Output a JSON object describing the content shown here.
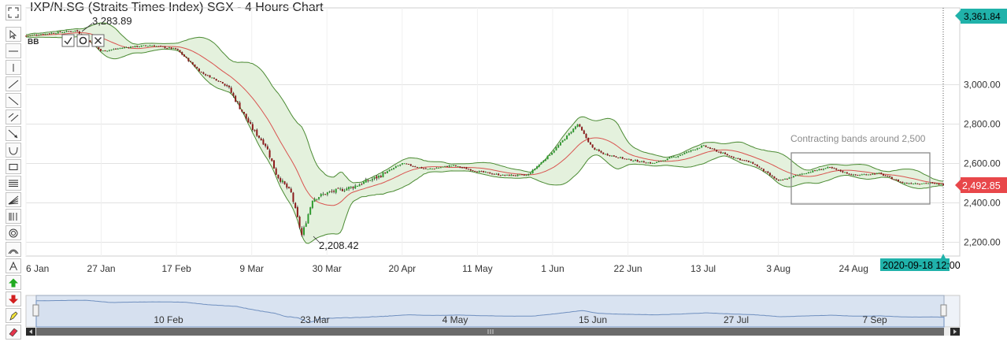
{
  "header": {
    "title": "IXP/N.SG (Straits Times Index) SGX - 4 Hours Chart"
  },
  "toolbar": {
    "tools": [
      "fullscreen-icon",
      "cursor-icon",
      "horizontal-line-icon",
      "vertical-line-icon",
      "trend-line-icon",
      "ray-icon",
      "parallel-channel-icon",
      "arrow-line-icon",
      "arc-icon",
      "rectangle-icon",
      "fibonacci-retracement-icon",
      "fibonacci-fan-icon",
      "fibonacci-time-icon",
      "circle-icon",
      "fibonacci-arc-icon",
      "text-icon",
      "buy-arrow-icon",
      "sell-arrow-icon",
      "pencil-icon",
      "eraser-icon"
    ]
  },
  "widgets": {
    "bb_label": "BB",
    "widget_icons": [
      "check-icon",
      "gear-icon",
      "close-icon"
    ]
  },
  "chart_data": {
    "type": "candlestick",
    "title": "IXP/N.SG (Straits Times Index) SGX - 4 Hours Chart",
    "indicator": "Bollinger Bands",
    "y_ticks": [
      "3,000.00",
      "2,800.00",
      "2,600.00",
      "2,400.00",
      "2,200.00"
    ],
    "y_tick_values": [
      3000,
      2800,
      2600,
      2400,
      2200
    ],
    "ylim": [
      2130,
      3390
    ],
    "x_ticks": [
      "6 Jan",
      "27 Jan",
      "17 Feb",
      "9 Mar",
      "30 Mar",
      "20 Apr",
      "11 May",
      "1 Jun",
      "22 Jun",
      "13 Jul",
      "3 Aug",
      "24 Aug"
    ],
    "x_range": [
      "2020-01-06",
      "2020-09-18"
    ],
    "current_price_label": "2,492.85",
    "current_price": 2492.85,
    "crosshair_price_label": "3,361.84",
    "crosshair_price": 3361.84,
    "crosshair_time_label": "2020-09-18 12:00",
    "high_label": "3,283.89",
    "high_value": 3283.89,
    "low_label": "2,208.42",
    "low_value": 2208.42,
    "annotation": "Contracting bands around 2,500",
    "close_series": [
      {
        "date": "2020-01-06",
        "value": 3248
      },
      {
        "date": "2020-01-13",
        "value": 3262
      },
      {
        "date": "2020-01-20",
        "value": 3275
      },
      {
        "date": "2020-01-27",
        "value": 3170
      },
      {
        "date": "2020-02-03",
        "value": 3190
      },
      {
        "date": "2020-02-10",
        "value": 3200
      },
      {
        "date": "2020-02-17",
        "value": 3180
      },
      {
        "date": "2020-02-24",
        "value": 3060
      },
      {
        "date": "2020-03-02",
        "value": 3000
      },
      {
        "date": "2020-03-09",
        "value": 2780
      },
      {
        "date": "2020-03-13",
        "value": 2690
      },
      {
        "date": "2020-03-16",
        "value": 2540
      },
      {
        "date": "2020-03-20",
        "value": 2450
      },
      {
        "date": "2020-03-23",
        "value": 2233
      },
      {
        "date": "2020-03-26",
        "value": 2420
      },
      {
        "date": "2020-03-30",
        "value": 2450
      },
      {
        "date": "2020-04-06",
        "value": 2480
      },
      {
        "date": "2020-04-13",
        "value": 2530
      },
      {
        "date": "2020-04-20",
        "value": 2600
      },
      {
        "date": "2020-04-27",
        "value": 2570
      },
      {
        "date": "2020-05-04",
        "value": 2590
      },
      {
        "date": "2020-05-11",
        "value": 2560
      },
      {
        "date": "2020-05-18",
        "value": 2540
      },
      {
        "date": "2020-05-25",
        "value": 2540
      },
      {
        "date": "2020-06-01",
        "value": 2660
      },
      {
        "date": "2020-06-08",
        "value": 2800
      },
      {
        "date": "2020-06-12",
        "value": 2680
      },
      {
        "date": "2020-06-15",
        "value": 2650
      },
      {
        "date": "2020-06-22",
        "value": 2620
      },
      {
        "date": "2020-06-29",
        "value": 2600
      },
      {
        "date": "2020-07-06",
        "value": 2640
      },
      {
        "date": "2020-07-13",
        "value": 2690
      },
      {
        "date": "2020-07-20",
        "value": 2640
      },
      {
        "date": "2020-07-27",
        "value": 2600
      },
      {
        "date": "2020-08-03",
        "value": 2510
      },
      {
        "date": "2020-08-10",
        "value": 2550
      },
      {
        "date": "2020-08-17",
        "value": 2580
      },
      {
        "date": "2020-08-24",
        "value": 2540
      },
      {
        "date": "2020-08-31",
        "value": 2550
      },
      {
        "date": "2020-09-07",
        "value": 2500
      },
      {
        "date": "2020-09-14",
        "value": 2500
      },
      {
        "date": "2020-09-18",
        "value": 2492.85
      }
    ]
  },
  "navigator": {
    "labels": [
      "10 Feb",
      "23 Mar",
      "4 May",
      "15 Jun",
      "27 Jul",
      "7 Sep"
    ],
    "scroll_thumb_icon": "grip-icon",
    "scroll_left_icon": "scroll-left-icon",
    "scroll_right_icon": "scroll-right-icon"
  },
  "colors": {
    "up": "#2e9b2e",
    "down": "#8b1a1a",
    "band_fill": "#e4f1dd",
    "band_line": "#4a8a32",
    "middle_line": "#d9534f",
    "price_tag": "#e8474a",
    "cyan_tag": "#20b2aa",
    "navigator_fill": "#d6e0ef",
    "navigator_line": "#6f8fbf"
  }
}
